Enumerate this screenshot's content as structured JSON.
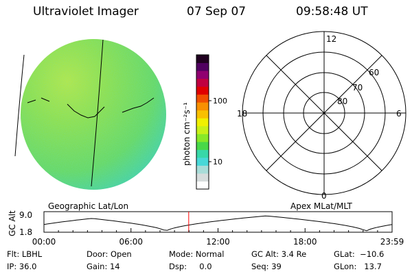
{
  "header": {
    "title": "Ultraviolet Imager",
    "date": "07 Sep 07",
    "time": "09:58:48 UT"
  },
  "colorbar": {
    "label": "photon cm⁻²s⁻¹",
    "ticks": [
      {
        "label": "100",
        "value": 100
      },
      {
        "label": "10",
        "value": 10
      }
    ],
    "colors": [
      "#ffffff",
      "#d6dcdc",
      "#a8dcd8",
      "#48d8d8",
      "#38d8a8",
      "#48d848",
      "#88e828",
      "#c8f018",
      "#f0f000",
      "#f8c000",
      "#f89000",
      "#f05000",
      "#e00000",
      "#c00040",
      "#900070",
      "#500060",
      "#200020"
    ]
  },
  "polar_plot": {
    "mlt_labels": [
      "12",
      "18",
      "6",
      "0"
    ],
    "lat_labels": [
      "60",
      "70",
      "80"
    ]
  },
  "altitude_plot": {
    "left_title": "Geographic Lat/Lon",
    "right_title": "Apex MLat/MLT",
    "ylabel": "GC Alt",
    "yticks": [
      "9.0",
      "1.8"
    ],
    "xticks": [
      "00:00",
      "06:00",
      "12:00",
      "18:00",
      "23:59"
    ],
    "current_time_hours": 9.98,
    "line_color": "#000000",
    "marker_color": "#ff0000"
  },
  "info": {
    "filter": "Flt: LBHL",
    "ip": "IP: 36.0",
    "door": "Door: Open",
    "gain": "Gain: 14",
    "mode": "Mode: Normal",
    "dsp": "Dsp:     0.0",
    "gc_alt": "GC Alt: 3.4 Re",
    "seq": "Seq: 39",
    "glat": "GLat:  −10.6",
    "glon": "GLon:   13.7"
  }
}
